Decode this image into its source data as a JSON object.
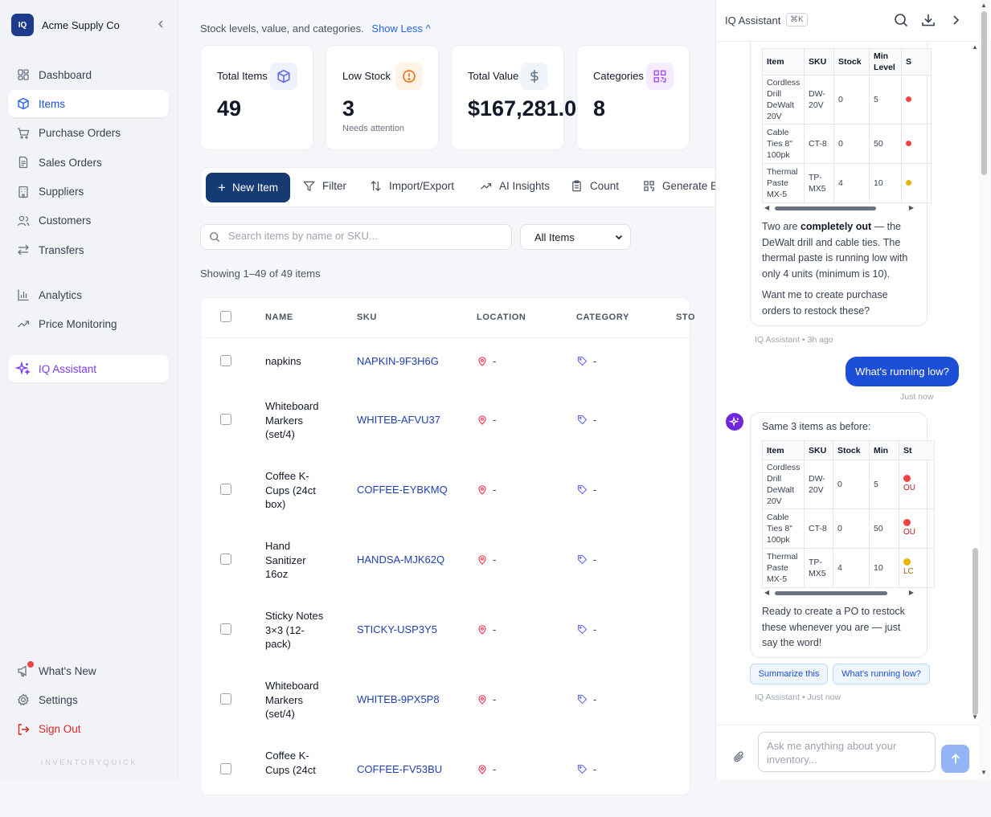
{
  "brand": {
    "logo_text": "IQ",
    "name": "Acme Supply Co"
  },
  "sidebar": {
    "items": [
      {
        "label": "Dashboard",
        "icon": "dashboard-grid-icon"
      },
      {
        "label": "Items",
        "icon": "cube-icon"
      },
      {
        "label": "Purchase Orders",
        "icon": "cart-icon"
      },
      {
        "label": "Sales Orders",
        "icon": "document-icon"
      },
      {
        "label": "Suppliers",
        "icon": "building-icon"
      },
      {
        "label": "Customers",
        "icon": "users-icon"
      },
      {
        "label": "Transfers",
        "icon": "arrows-swap-icon"
      },
      {
        "label": "Analytics",
        "icon": "bar-chart-icon"
      },
      {
        "label": "Price Monitoring",
        "icon": "trend-up-icon"
      },
      {
        "label": "IQ Assistant",
        "icon": "sparkle-icon"
      }
    ],
    "bottom": [
      {
        "label": "What's New",
        "icon": "megaphone-icon"
      },
      {
        "label": "Settings",
        "icon": "gear-icon"
      },
      {
        "label": "Sign Out",
        "icon": "logout-icon"
      }
    ],
    "footer": "INVENTORYQUICK"
  },
  "header": {
    "subtitle": "Stock levels, value, and categories.",
    "toggle": "Show Less ^"
  },
  "stats": [
    {
      "label": "Total Items",
      "value": "49",
      "sub": "",
      "icon": "cube-icon",
      "color": "#6366f1"
    },
    {
      "label": "Low Stock",
      "value": "3",
      "sub": "Needs attention",
      "icon": "alert-circle-icon",
      "color": "#f97316"
    },
    {
      "label": "Total Value",
      "value": "$167,281.0",
      "sub": "",
      "icon": "dollar-icon",
      "color": "#64748b"
    },
    {
      "label": "Categories",
      "value": "8",
      "sub": "",
      "icon": "qr-icon",
      "color": "#a855f7"
    }
  ],
  "toolbar": {
    "new_item": "New Item",
    "filter": "Filter",
    "import_export": "Import/Export",
    "ai_insights": "AI Insights",
    "count": "Count",
    "generate": "Generate B"
  },
  "search": {
    "placeholder": "Search items by name or SKU...",
    "filter_value": "All Items"
  },
  "showing": "Showing 1–49 of 49 items",
  "table": {
    "columns": [
      "NAME",
      "SKU",
      "LOCATION",
      "CATEGORY",
      "STO"
    ],
    "rows": [
      {
        "name": "napkins",
        "sku": "NAPKIN-9F3H6G",
        "location": "-",
        "category": "-"
      },
      {
        "name": "Whiteboard Markers (set/4)",
        "sku": "WHITEB-AFVU37",
        "location": "-",
        "category": "-"
      },
      {
        "name": "Coffee K-Cups (24ct box)",
        "sku": "COFFEE-EYBKMQ",
        "location": "-",
        "category": "-"
      },
      {
        "name": "Hand Sanitizer 16oz",
        "sku": "HANDSA-MJK62Q",
        "location": "-",
        "category": "-"
      },
      {
        "name": "Sticky Notes 3×3 (12-pack)",
        "sku": "STICKY-USP3Y5",
        "location": "-",
        "category": "-"
      },
      {
        "name": "Whiteboard Markers (set/4)",
        "sku": "WHITEB-9PX5P8",
        "location": "-",
        "category": "-"
      },
      {
        "name": "Coffee K-Cups (24ct",
        "sku": "COFFEE-FV53BU",
        "location": "-",
        "category": "-"
      }
    ]
  },
  "assistant": {
    "title": "IQ Assistant",
    "shortcut": "⌘K",
    "msg1": {
      "columns": [
        "Item",
        "SKU",
        "Stock",
        "Min Level",
        "S"
      ],
      "rows": [
        [
          "Cordless Drill DeWalt 20V",
          "DW-20V",
          "0",
          "5"
        ],
        [
          "Cable Ties 8\" 100pk",
          "CT-8",
          "0",
          "50"
        ],
        [
          "Thermal Paste MX-5",
          "TP-MX5",
          "4",
          "10"
        ]
      ],
      "p1_pre": "Two are ",
      "p1_bold": "completely out",
      "p1_post": " — the DeWalt drill and cable ties. The thermal paste is running low with only 4 units (minimum is 10).",
      "p2": "Want me to create purchase orders to restock these?",
      "meta": "IQ Assistant • 3h ago"
    },
    "user_msg": {
      "text": "What's running low?",
      "meta": "Just now"
    },
    "msg2": {
      "intro": "Same 3 items as before:",
      "columns": [
        "Item",
        "SKU",
        "Stock",
        "Min",
        "St"
      ],
      "rows": [
        [
          "Cordless Drill DeWalt 20V",
          "DW-20V",
          "0",
          "5",
          "OU"
        ],
        [
          "Cable Ties 8\" 100pk",
          "CT-8",
          "0",
          "50",
          "OU"
        ],
        [
          "Thermal Paste MX-5",
          "TP-MX5",
          "4",
          "10",
          "LC"
        ]
      ],
      "status_colors": [
        "#ef4444",
        "#ef4444",
        "#eab308"
      ],
      "text": "Ready to create a PO to restock these whenever you are — just say the word!",
      "meta": "IQ Assistant • Just now"
    },
    "chips": [
      "Summarize this",
      "What's running low?"
    ],
    "input_placeholder": "Ask me anything about your inventory..."
  }
}
